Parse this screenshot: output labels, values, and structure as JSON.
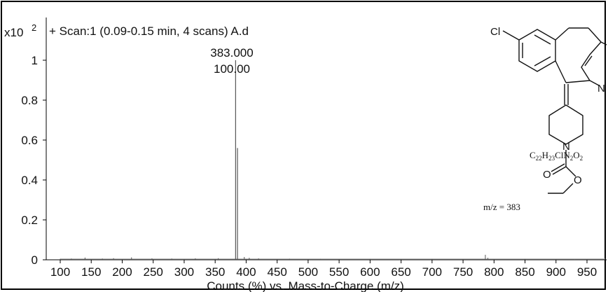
{
  "chart_data": {
    "type": "line",
    "title": "+ Scan:1 (0.09-0.15 min, 4 scans) A.d",
    "y_multiplier": "x10",
    "y_exponent": "2",
    "xlabel": "Counts (%) vs. Mass-to-Charge (m/z)",
    "ylabel": "",
    "xlim": [
      65,
      1000
    ],
    "ylim": [
      0,
      1.1
    ],
    "xticks": [
      100,
      150,
      200,
      250,
      300,
      350,
      400,
      450,
      500,
      550,
      600,
      650,
      700,
      750,
      800,
      850,
      900,
      950
    ],
    "yticks": [
      0,
      0.2,
      0.4,
      0.6,
      0.8,
      1
    ],
    "ytick_labels": [
      "0",
      "0.2",
      "0.4",
      "0.6",
      "0.8",
      "1"
    ],
    "grid": false,
    "peak_label": {
      "mz": "383.000",
      "intensity": "100.00"
    },
    "series": [
      {
        "x": [
          100,
          118,
          140,
          168,
          186,
          215,
          248,
          280,
          318,
          355,
          383,
          386,
          397,
          405,
          420,
          470,
          520,
          600,
          700,
          786,
          790,
          850,
          930
        ],
        "y": [
          0.005,
          0.006,
          0.011,
          0.006,
          0.008,
          0.012,
          0.007,
          0.006,
          0.007,
          0.008,
          1.0,
          0.56,
          0.014,
          0.01,
          0.007,
          0.005,
          0.004,
          0.004,
          0.004,
          0.025,
          0.01,
          0.004,
          0.003
        ]
      }
    ]
  },
  "structure": {
    "substituent": "Cl",
    "ring_nitrogen": "N",
    "piperidine_nitrogen": "N",
    "carbonyl_oxygen": "O",
    "ester_oxygen": "O",
    "formula": {
      "c": "C",
      "c_count": "22",
      "h": "H",
      "h_count": "23",
      "cln": "ClN",
      "n_count": "2",
      "o": "O",
      "o_count": "2"
    },
    "mz_label": "m/z = 383"
  }
}
